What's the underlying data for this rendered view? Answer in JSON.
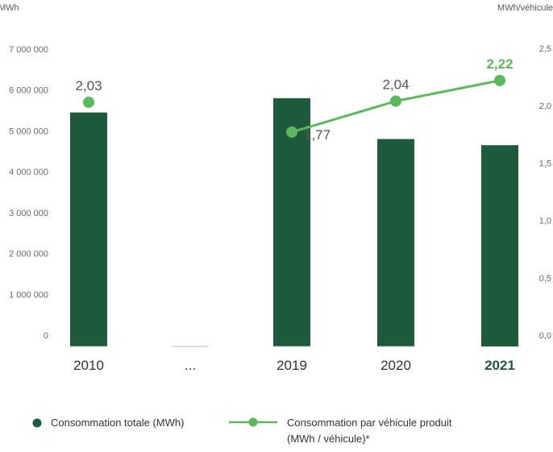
{
  "chart_data": {
    "type": "bar",
    "categories": [
      "2010",
      "...",
      "2019",
      "2020",
      "2021"
    ],
    "highlight_category": "2021",
    "series": [
      {
        "name": "Consommation totale (MWh)",
        "type": "bar",
        "axis": "left",
        "color": "#1f5a3d",
        "values": [
          5450000,
          null,
          5800000,
          4800000,
          4650000
        ]
      },
      {
        "name_lines": [
          "Consommation par véhicule produit",
          "(MWh / véhicule)*"
        ],
        "type": "line",
        "axis": "right",
        "color": "#5cb85c",
        "line_connects": [
          "2019",
          "2020",
          "2021"
        ],
        "values": [
          2.03,
          null,
          1.77,
          2.04,
          2.22
        ],
        "labels": [
          "2,03",
          null,
          "1,77",
          "2,04",
          "2,22"
        ],
        "highlight_label": "2,22"
      }
    ],
    "y_left": {
      "unit": "MWh",
      "ylim": [
        0,
        7000000
      ],
      "ticks": [
        0,
        1000000,
        2000000,
        3000000,
        4000000,
        5000000,
        6000000,
        7000000
      ],
      "tick_labels": [
        "0",
        "1 000 000",
        "2 000 000",
        "3 000 000",
        "4 000 000",
        "5 000 000",
        "6 000 000",
        "7 000 000"
      ]
    },
    "y_right": {
      "unit": "MWh/véhicule",
      "ylim": [
        0,
        2.5
      ],
      "ticks": [
        0,
        0.5,
        1.0,
        1.5,
        2.0,
        2.5
      ],
      "tick_labels": [
        "0,0",
        "0,5",
        "1,0",
        "1,5",
        "2,0",
        "2,5"
      ]
    },
    "grid": false,
    "legend_position": "bottom"
  }
}
